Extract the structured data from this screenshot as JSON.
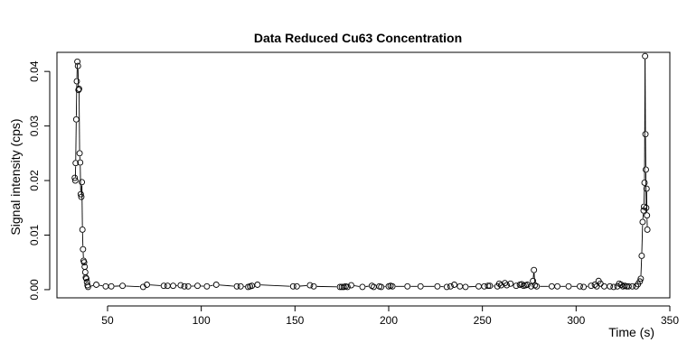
{
  "chart_data": {
    "type": "line",
    "title": "Data Reduced Cu63 Concentration",
    "xlabel": "Time (s)",
    "ylabel": "Signal intensity (cps)",
    "xlim": [
      23,
      350
    ],
    "ylim": [
      -0.0015,
      0.0435
    ],
    "xticks": [
      50,
      100,
      150,
      200,
      250,
      300,
      350
    ],
    "yticks": [
      0.0,
      0.01,
      0.02,
      0.03,
      0.04
    ],
    "ytick_labels": [
      "0.00",
      "0.01",
      "0.02",
      "0.03",
      "0.04"
    ],
    "markers": "open-circle",
    "grid": false,
    "legend": "none",
    "series": [
      {
        "points": [
          [
            32.5,
            0.0205
          ],
          [
            32.8,
            0.02
          ],
          [
            33.0,
            0.0232
          ],
          [
            33.3,
            0.0312
          ],
          [
            33.6,
            0.0382
          ],
          [
            33.9,
            0.0418
          ],
          [
            34.2,
            0.041
          ],
          [
            34.5,
            0.0366
          ],
          [
            34.8,
            0.0368
          ],
          [
            35.1,
            0.025
          ],
          [
            35.4,
            0.0233
          ],
          [
            35.7,
            0.0175
          ],
          [
            36.0,
            0.017
          ],
          [
            36.3,
            0.0197
          ],
          [
            36.6,
            0.011
          ],
          [
            36.9,
            0.0074
          ],
          [
            37.2,
            0.0053
          ],
          [
            37.5,
            0.005
          ],
          [
            37.8,
            0.0042
          ],
          [
            38.1,
            0.0032
          ],
          [
            38.4,
            0.0022
          ],
          [
            38.7,
            0.002
          ],
          [
            39.0,
            0.0014
          ],
          [
            39.3,
            0.0008
          ],
          [
            39.6,
            0.0005
          ],
          [
            44.0,
            0.0009
          ],
          [
            49.0,
            0.0006
          ],
          [
            52.0,
            0.0006
          ],
          [
            58.0,
            0.0007
          ],
          [
            69.0,
            0.0005
          ],
          [
            71.0,
            0.0009
          ],
          [
            80.0,
            0.0007
          ],
          [
            82.0,
            0.0007
          ],
          [
            85.0,
            0.0007
          ],
          [
            89.0,
            0.0008
          ],
          [
            91.0,
            0.0006
          ],
          [
            93.0,
            0.0006
          ],
          [
            98.0,
            0.0007
          ],
          [
            103.0,
            0.0006
          ],
          [
            108.0,
            0.0009
          ],
          [
            119.0,
            0.0006
          ],
          [
            121.0,
            0.0006
          ],
          [
            125.0,
            0.0005
          ],
          [
            126.0,
            0.0006
          ],
          [
            127.0,
            0.0007
          ],
          [
            130.0,
            0.0009
          ],
          [
            149.0,
            0.0006
          ],
          [
            151.0,
            0.0006
          ],
          [
            158.0,
            0.0008
          ],
          [
            160.0,
            0.0006
          ],
          [
            174.0,
            0.0005
          ],
          [
            175.0,
            0.0005
          ],
          [
            176.0,
            0.0005
          ],
          [
            177.0,
            0.0006
          ],
          [
            178.0,
            0.0005
          ],
          [
            180.0,
            0.0008
          ],
          [
            186.0,
            0.0005
          ],
          [
            191.0,
            0.0007
          ],
          [
            192.0,
            0.0005
          ],
          [
            195.0,
            0.0006
          ],
          [
            196.0,
            0.0005
          ],
          [
            200.0,
            0.0006
          ],
          [
            201.0,
            0.0007
          ],
          [
            202.0,
            0.0006
          ],
          [
            210.0,
            0.0006
          ],
          [
            217.0,
            0.0006
          ],
          [
            226.0,
            0.0006
          ],
          [
            231.0,
            0.0005
          ],
          [
            233.0,
            0.0006
          ],
          [
            235.0,
            0.0009
          ],
          [
            238.0,
            0.0006
          ],
          [
            241.0,
            0.0005
          ],
          [
            248.0,
            0.0006
          ],
          [
            251.0,
            0.0006
          ],
          [
            253.0,
            0.0007
          ],
          [
            254.0,
            0.0007
          ],
          [
            258.0,
            0.0006
          ],
          [
            259.0,
            0.0011
          ],
          [
            260.0,
            0.0008
          ],
          [
            262.0,
            0.0012
          ],
          [
            263.0,
            0.0008
          ],
          [
            265.0,
            0.0011
          ],
          [
            268.0,
            0.0007
          ],
          [
            270.0,
            0.0009
          ],
          [
            271.0,
            0.001
          ],
          [
            272.0,
            0.0007
          ],
          [
            273.0,
            0.0008
          ],
          [
            274.0,
            0.0009
          ],
          [
            276.0,
            0.0006
          ],
          [
            277.0,
            0.0016
          ],
          [
            277.5,
            0.0036
          ],
          [
            278.0,
            0.0008
          ],
          [
            279.0,
            0.0006
          ],
          [
            287.0,
            0.0006
          ],
          [
            290.0,
            0.0006
          ],
          [
            296.0,
            0.0006
          ],
          [
            302.0,
            0.0006
          ],
          [
            304.0,
            0.0005
          ],
          [
            308.0,
            0.0007
          ],
          [
            310.0,
            0.0009
          ],
          [
            311.0,
            0.0006
          ],
          [
            312.0,
            0.0016
          ],
          [
            313.0,
            0.0011
          ],
          [
            315.0,
            0.0006
          ],
          [
            318.0,
            0.0006
          ],
          [
            320.0,
            0.0005
          ],
          [
            322.0,
            0.0006
          ],
          [
            323.0,
            0.0011
          ],
          [
            324.0,
            0.0009
          ],
          [
            325.0,
            0.0006
          ],
          [
            326.0,
            0.0007
          ],
          [
            327.0,
            0.0006
          ],
          [
            328.0,
            0.0006
          ],
          [
            330.0,
            0.0006
          ],
          [
            332.0,
            0.0006
          ],
          [
            333.0,
            0.001
          ],
          [
            334.0,
            0.0015
          ],
          [
            334.5,
            0.002
          ],
          [
            335.0,
            0.0062
          ],
          [
            335.5,
            0.0124
          ],
          [
            336.0,
            0.0145
          ],
          [
            336.2,
            0.0152
          ],
          [
            336.5,
            0.0196
          ],
          [
            336.8,
            0.0428
          ],
          [
            337.0,
            0.0285
          ],
          [
            337.2,
            0.022
          ],
          [
            337.4,
            0.015
          ],
          [
            337.6,
            0.0185
          ],
          [
            337.8,
            0.0136
          ],
          [
            338.0,
            0.011
          ]
        ]
      }
    ]
  }
}
